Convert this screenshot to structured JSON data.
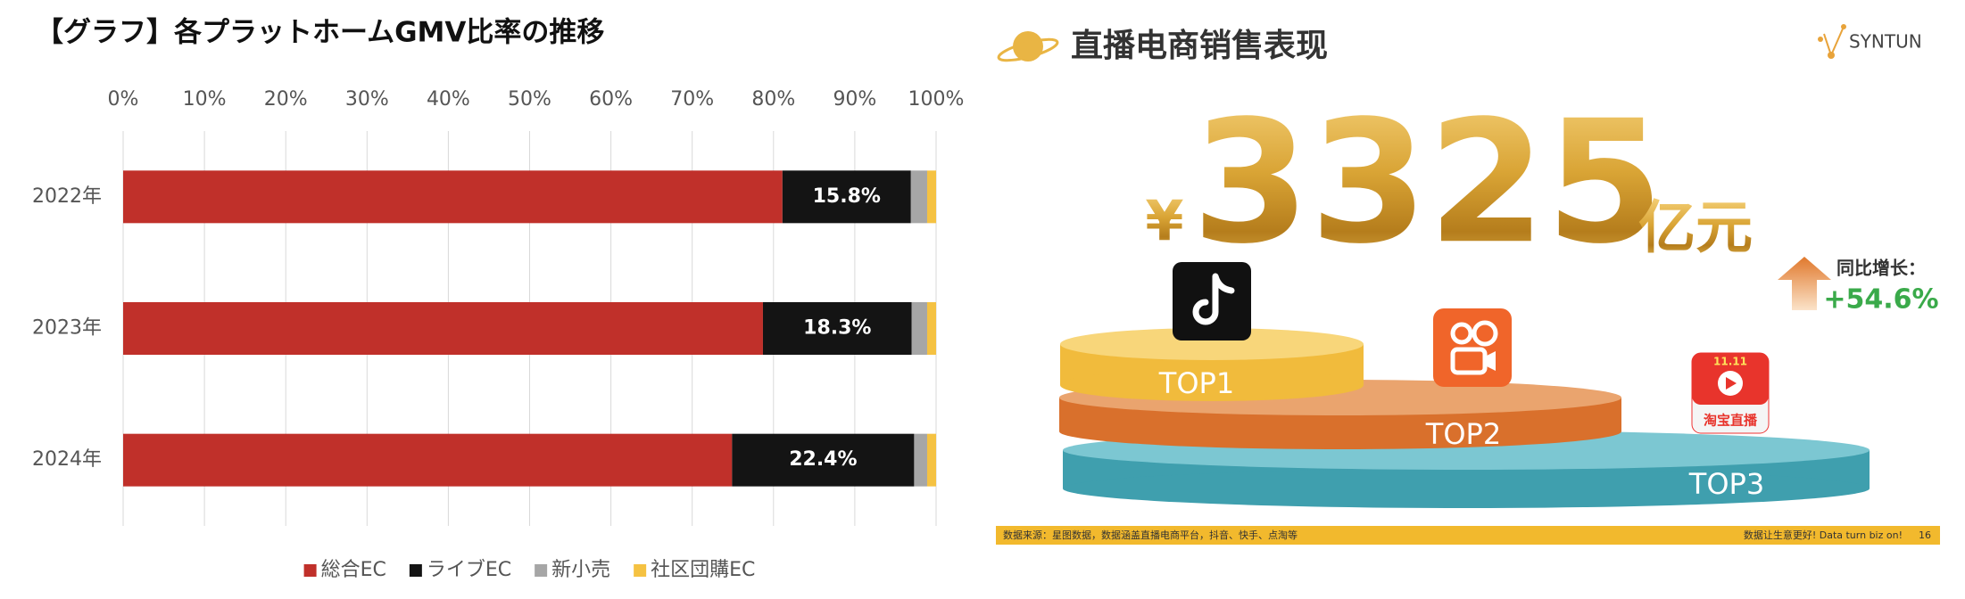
{
  "chart_data": {
    "type": "bar",
    "orientation": "horizontal",
    "stacked": true,
    "title": "【グラフ】各プラットホームGMV比率の推移",
    "categories": [
      "2022年",
      "2023年",
      "2024年"
    ],
    "series": [
      {
        "name": "総合EC",
        "color": "#c0302a",
        "values": [
          81.1,
          78.7,
          74.9
        ]
      },
      {
        "name": "ライブEC",
        "color": "#141414",
        "values": [
          15.8,
          18.3,
          22.4
        ],
        "value_labels": [
          "15.8%",
          "18.3%",
          "22.4%"
        ]
      },
      {
        "name": "新小売",
        "color": "#a6a6a6",
        "values": [
          2.0,
          1.9,
          1.6
        ]
      },
      {
        "name": "社区団購EC",
        "color": "#f5c242",
        "values": [
          1.1,
          1.1,
          1.1
        ]
      }
    ],
    "xlim": [
      0,
      100
    ],
    "xticks": [
      {
        "value": 0,
        "label": "0%"
      },
      {
        "value": 10,
        "label": "10%"
      },
      {
        "value": 20,
        "label": "20%"
      },
      {
        "value": 30,
        "label": "30%"
      },
      {
        "value": 40,
        "label": "40%"
      },
      {
        "value": 50,
        "label": "50%"
      },
      {
        "value": 60,
        "label": "60%"
      },
      {
        "value": 70,
        "label": "70%"
      },
      {
        "value": 80,
        "label": "80%"
      },
      {
        "value": 90,
        "label": "90%"
      },
      {
        "value": 100,
        "label": "100%"
      }
    ],
    "grid": true,
    "legend": "bottom"
  },
  "slide": {
    "title": "直播电商销售表现",
    "logo": "SYNTUN",
    "currency": "¥",
    "amount": "3325",
    "unit": "亿元",
    "growth_label": "同比增长：",
    "growth_value": "+54.6%",
    "tiers": [
      "TOP1",
      "TOP2",
      "TOP3"
    ],
    "taobao_badge": "11.11",
    "taobao_name": "淘宝直播",
    "footer_source": "数据来源：星图数据，数据涵盖直播电商平台，抖音、快手、点淘等",
    "footer_slogan": "数据让生意更好! Data turn biz on!",
    "page_number": "16"
  }
}
